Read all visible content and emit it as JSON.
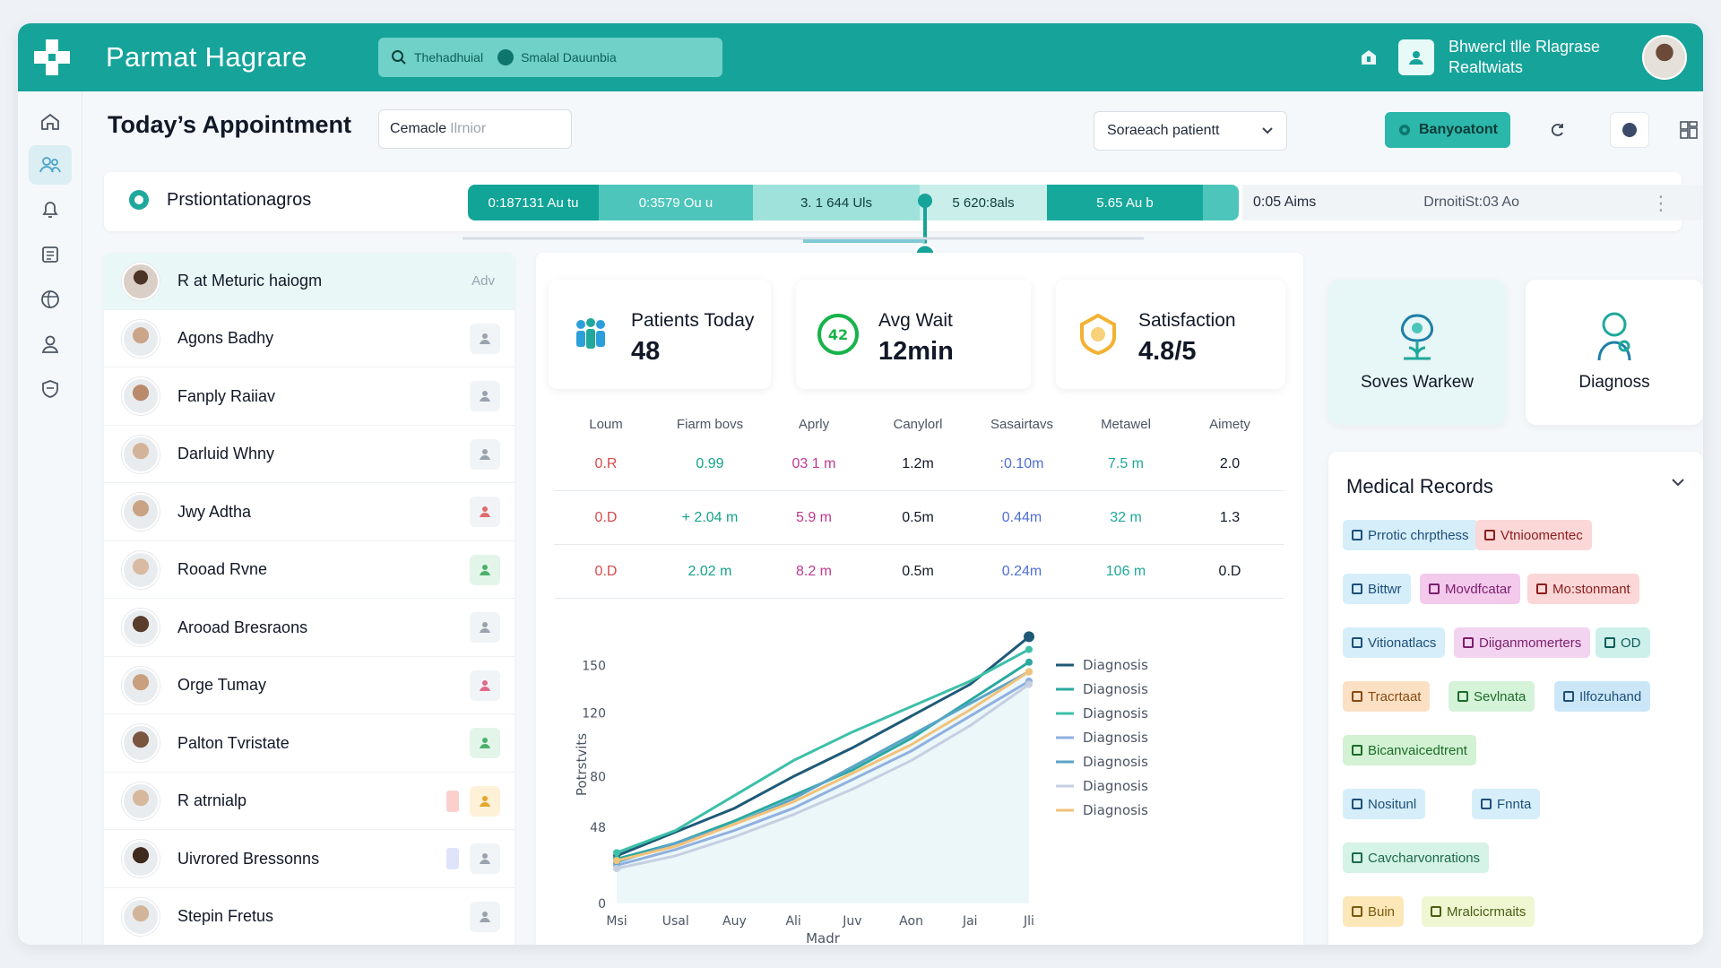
{
  "app": {
    "brand": "Parmat Hagrare",
    "search_text": "Thehadhuial",
    "search_chip": "Smalal Dauunbia",
    "user_line1": "Bhwercl tlle Rlagrase",
    "user_line2": "Realtwiats"
  },
  "toolbar": {
    "page_title": "Today’s Appointment",
    "input_value": "Cemacle",
    "input_placeholder": "Ilrnior",
    "select_value": "Soraeach patientt",
    "primary_button": "Banyoatont"
  },
  "timeline": {
    "title": "Prstiontationagros",
    "segments": [
      "0:187131 Au tu",
      "0:3579 Ou u",
      "3. 1 644 Uls",
      "5 620:8als",
      "5.65 Au b"
    ],
    "tail_left": "0:05 Aims",
    "tail_right": "DrnoitiSt:03 Ao"
  },
  "patients": {
    "header_name": "R at Meturic haiogm",
    "header_right": "Adv",
    "rows": [
      {
        "name": "Agons Badhy"
      },
      {
        "name": "Fanply Raiiav"
      },
      {
        "name": "Darluid Whny"
      },
      {
        "name": "Jwy Adtha"
      },
      {
        "name": "Rooad Rvne"
      },
      {
        "name": "Arooad Bresraons"
      },
      {
        "name": "Orge Tumay"
      },
      {
        "name": "Palton Tvristate"
      },
      {
        "name": "R atrnialp"
      },
      {
        "name": "Uivrored Bressonns"
      },
      {
        "name": "Stepin Fretus"
      }
    ]
  },
  "stats": [
    {
      "label": "Patients Today",
      "value": "48"
    },
    {
      "label": "Avg Wait",
      "value": "12min"
    },
    {
      "label": "Satisfaction",
      "value": "4.8/5"
    }
  ],
  "metrics_table": {
    "headers": [
      "Loum",
      "Fiarm bovs",
      "Aprly",
      "Canylorl",
      "Sasairtavs",
      "Metawel",
      "Aimety"
    ],
    "rows": [
      [
        "0.R",
        "0.99",
        "03 1 m",
        "1.2m",
        ":0.10m",
        "7.5 m",
        "2.0"
      ],
      [
        "0.D",
        "+ 2.04 m",
        "5.9 m",
        "0.5m",
        "0.44m",
        "32 m",
        "1.3"
      ],
      [
        "0.D",
        "2.02 m",
        "8.2 m",
        "0.5m",
        "0.24m",
        "106 m",
        "0.D"
      ]
    ],
    "colors": [
      "#d94b4b",
      "#14a38b",
      "#c0398f",
      "#111827",
      "#4f6fd6",
      "#1fa89b",
      "#111827"
    ]
  },
  "quick_cards": [
    {
      "label": "Soves Warkew",
      "icon": "care-plant-icon"
    },
    {
      "label": "Diagnoss",
      "icon": "stethoscope-icon"
    }
  ],
  "records": {
    "title": "Medical Records",
    "tags": [
      {
        "label": "Prrotic chrpthess",
        "bg": "#d6eef9",
        "fg": "#1d4f7a"
      },
      {
        "label": "Vtnioomentec",
        "bg": "#fbd7d7",
        "fg": "#8b1d1d"
      },
      {
        "label": "Bittwr",
        "bg": "#d6eef9",
        "fg": "#1d4f7a"
      },
      {
        "label": "Movdfcatar",
        "bg": "#f3c9ec",
        "fg": "#7b1f6c"
      },
      {
        "label": "Mo:stonmant",
        "bg": "#fbd7d7",
        "fg": "#8b1d1d"
      },
      {
        "label": "Vitionatlacs",
        "bg": "#d6eef9",
        "fg": "#1d4f7a"
      },
      {
        "label": "Diiganmomerters",
        "bg": "#f3d4f0",
        "fg": "#7b1f6c"
      },
      {
        "label": "OD",
        "bg": "#cdf0ea",
        "fg": "#0e5f59"
      },
      {
        "label": "Tracrtaat",
        "bg": "#fbe0c4",
        "fg": "#8a4a12"
      },
      {
        "label": "Sevlnata",
        "bg": "#d5f3d9",
        "fg": "#1c6b2a"
      },
      {
        "label": "Ilfozuhand",
        "bg": "#cbe7f7",
        "fg": "#1d4f7a"
      },
      {
        "label": "Bicanvaicedtrent",
        "bg": "#d2f2d3",
        "fg": "#1c6b2a"
      },
      {
        "label": "Nositunl",
        "bg": "#d6eef9",
        "fg": "#1d4f7a"
      },
      {
        "label": "Fnnta",
        "bg": "#d6eef9",
        "fg": "#1d4f7a"
      },
      {
        "label": "Cavcharvonrations",
        "bg": "#d5f3e6",
        "fg": "#1c6b4a"
      },
      {
        "label": "Buin",
        "bg": "#fbe7b8",
        "fg": "#7a5a10"
      },
      {
        "label": "Mralcicrmaits",
        "bg": "#eef7d2",
        "fg": "#4b5e14"
      }
    ]
  },
  "chart_data": {
    "type": "line",
    "categories": [
      "Msi",
      "Usal",
      "Auy",
      "Ali",
      "Juv",
      "Aon",
      "Jai",
      "Jli"
    ],
    "xlabel": "Madr",
    "ylabel": "Potrstvits",
    "yticks": [
      0,
      48,
      80,
      120,
      150
    ],
    "ylim": [
      0,
      175
    ],
    "legend_position": "right",
    "series": [
      {
        "name": "Diagnosis",
        "color": "#1e5a78",
        "values": [
          30,
          45,
          60,
          80,
          98,
          118,
          138,
          168
        ]
      },
      {
        "name": "Diagnosis",
        "color": "#2aa9a0",
        "values": [
          28,
          38,
          52,
          68,
          84,
          104,
          128,
          152
        ]
      },
      {
        "name": "Diagnosis",
        "color": "#3cc0a8",
        "values": [
          32,
          46,
          68,
          90,
          108,
          124,
          140,
          160
        ]
      },
      {
        "name": "Diagnosis",
        "color": "#8fb0e0",
        "values": [
          24,
          34,
          46,
          60,
          78,
          96,
          118,
          140
        ]
      },
      {
        "name": "Diagnosis",
        "color": "#5ba4c8",
        "values": [
          26,
          38,
          50,
          66,
          86,
          106,
          126,
          146
        ]
      },
      {
        "name": "Diagnosis",
        "color": "#c6cfe2",
        "values": [
          22,
          30,
          42,
          56,
          72,
          90,
          112,
          138
        ]
      },
      {
        "name": "Diagnosis",
        "color": "#f2c27a",
        "values": [
          27,
          36,
          50,
          64,
          82,
          100,
          122,
          146
        ]
      }
    ]
  }
}
